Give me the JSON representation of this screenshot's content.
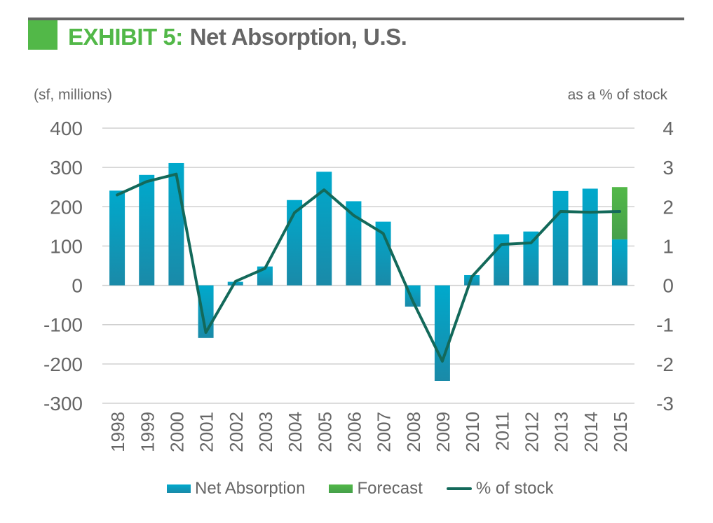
{
  "header": {
    "exhibit_label": "EXHIBIT 5:",
    "title": "Net Absorption, U.S."
  },
  "colors": {
    "accent_green": "#52b848",
    "bar_blue": "#00a9cc",
    "line_green": "#13695a",
    "text_gray": "#666666"
  },
  "chart_data": {
    "type": "bar",
    "title": "Net Absorption, U.S.",
    "ylabel": "(sf, millions)",
    "y2label": "as a % of stock",
    "ylim": [
      -300,
      400
    ],
    "y2lim": [
      -3,
      4
    ],
    "yticks": [
      "400",
      "300",
      "200",
      "100",
      "0",
      "-100",
      "-200",
      "-300"
    ],
    "y2ticks": [
      "4",
      "3",
      "2",
      "1",
      "0",
      "-1",
      "-2",
      "-3"
    ],
    "grid": true,
    "legend_position": "bottom",
    "categories": [
      "1998",
      "1999",
      "2000",
      "2001",
      "2002",
      "2003",
      "2004",
      "2005",
      "2006",
      "2007",
      "2008",
      "2009",
      "2010",
      "2011",
      "2012",
      "2013",
      "2014",
      "2015"
    ],
    "series": [
      {
        "name": "Net Absorption",
        "type": "bar",
        "axis": "left",
        "values": [
          241,
          281,
          311,
          -134,
          9,
          48,
          217,
          289,
          214,
          162,
          -54,
          -243,
          26,
          130,
          137,
          240,
          246,
          117
        ]
      },
      {
        "name": "Forecast",
        "type": "bar-stacked",
        "axis": "left",
        "values": [
          0,
          0,
          0,
          0,
          0,
          0,
          0,
          0,
          0,
          0,
          0,
          0,
          0,
          0,
          0,
          0,
          0,
          133
        ]
      },
      {
        "name": "% of stock",
        "type": "line",
        "axis": "right",
        "values": [
          2.3,
          2.64,
          2.83,
          -1.2,
          0.1,
          0.43,
          1.85,
          2.43,
          1.78,
          1.32,
          -0.4,
          -1.93,
          0.22,
          1.04,
          1.08,
          1.88,
          1.86,
          1.88
        ]
      }
    ]
  },
  "legend": {
    "items": [
      "Net Absorption",
      "Forecast",
      "% of stock"
    ]
  }
}
